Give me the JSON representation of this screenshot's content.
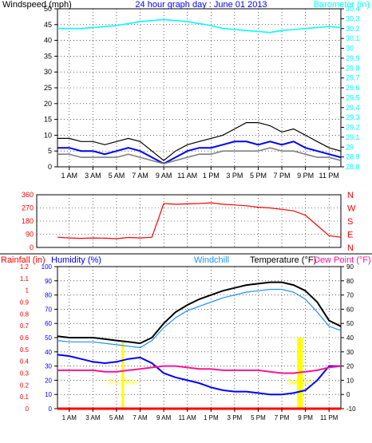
{
  "chart_data": [
    {
      "type": "line",
      "title": "24 hour graph day : June 01 2013",
      "ylabel_left": "Windspeed (mph)",
      "ylabel_right": "Barometer (in)",
      "ylim_left": [
        0,
        50
      ],
      "ylim_right": [
        28.8,
        30.4
      ],
      "yticks_left": [
        "0",
        "5",
        "10",
        "15",
        "20",
        "25",
        "30",
        "35",
        "40",
        "45",
        "50"
      ],
      "yticks_right": [
        "28.8",
        "28.9",
        "29",
        "29.1",
        "29.2",
        "29.3",
        "29.4",
        "29.5",
        "29.6",
        "29.7",
        "29.8",
        "29.9",
        "30",
        "30.1",
        "30.2",
        "30.3",
        "30.4"
      ],
      "xticks": [
        "1 AM",
        "3 AM",
        "5 AM",
        "7 AM",
        "9 AM",
        "11 AM",
        "1 PM",
        "3 PM",
        "5 PM",
        "7 PM",
        "9 PM",
        "11 PM"
      ],
      "x_hours": [
        0,
        1,
        2,
        3,
        4,
        5,
        6,
        7,
        8,
        9,
        10,
        11,
        12,
        13,
        14,
        15,
        16,
        17,
        18,
        19,
        20,
        21,
        22,
        23,
        24
      ],
      "series": [
        {
          "key": "gust",
          "color": "#000000",
          "values": [
            9,
            9,
            8,
            8,
            7,
            8,
            9,
            8,
            5,
            2,
            5,
            7,
            8,
            9,
            10,
            12,
            14,
            14,
            13,
            11,
            12,
            10,
            8,
            6,
            5
          ]
        },
        {
          "key": "speed",
          "color": "#0000ff",
          "values": [
            6,
            6,
            5,
            5,
            4,
            5,
            6,
            5,
            3,
            1,
            3,
            5,
            6,
            6,
            7,
            8,
            8,
            7,
            8,
            7,
            8,
            6,
            5,
            4,
            3
          ]
        },
        {
          "key": "avg",
          "color": "#808080",
          "values": [
            4,
            4,
            3,
            3,
            3,
            3,
            4,
            3,
            2,
            1,
            2,
            3,
            4,
            4,
            5,
            5,
            5,
            5,
            6,
            5,
            5,
            4,
            3,
            3,
            2
          ]
        },
        {
          "key": "barometer",
          "color": "#00ffff",
          "axis": "right",
          "values": [
            30.2,
            30.2,
            30.2,
            30.21,
            30.22,
            30.23,
            30.25,
            30.27,
            30.28,
            30.29,
            30.28,
            30.27,
            30.25,
            30.23,
            30.2,
            30.19,
            30.18,
            30.17,
            30.16,
            30.18,
            30.19,
            30.2,
            30.21,
            30.22,
            30.21
          ]
        }
      ]
    },
    {
      "type": "line",
      "ylim": [
        0,
        360
      ],
      "yticks": [
        "0",
        "90",
        "180",
        "270",
        "360"
      ],
      "compass": [
        "N",
        "W",
        "S",
        "E",
        "N"
      ],
      "xticks": [
        "1 AM",
        "3 AM",
        "5 AM",
        "7 AM",
        "9 AM",
        "11 AM",
        "1 PM",
        "3 PM",
        "5 PM",
        "7 PM",
        "9 PM",
        "11 PM"
      ],
      "series": [
        {
          "key": "direction",
          "color": "#ff0000",
          "values": [
            70,
            65,
            62,
            65,
            63,
            60,
            68,
            65,
            70,
            300,
            295,
            298,
            300,
            305,
            295,
            290,
            285,
            275,
            270,
            260,
            250,
            220,
            150,
            80,
            70
          ]
        }
      ]
    },
    {
      "type": "line",
      "legend": [
        "Rainfall (in)",
        "Humidity (%)",
        "Windchill",
        "Temperature (°F)",
        "Dew Point (°F)"
      ],
      "ylim_rain": [
        0,
        1.2
      ],
      "ylim_humidity": [
        0,
        100
      ],
      "ylim_temp": [
        -10,
        90
      ],
      "yticks_rain": [
        "0",
        "0.1",
        "0.2",
        "0.3",
        "0.4",
        "0.5",
        "0.6",
        "0.7",
        "0.8",
        "0.9",
        "1",
        "1.1",
        "1.2"
      ],
      "yticks_humidity": [
        "0",
        "10",
        "20",
        "30",
        "40",
        "50",
        "60",
        "70",
        "80",
        "90",
        "100"
      ],
      "yticks_temp": [
        "-10",
        "0",
        "10",
        "20",
        "30",
        "40",
        "50",
        "60",
        "70",
        "80",
        "90"
      ],
      "xticks": [
        "1 AM",
        "3 AM",
        "5 AM",
        "7 AM",
        "9 AM",
        "11 AM",
        "1 PM",
        "3 PM",
        "5 PM",
        "7 PM",
        "9 PM",
        "11 PM"
      ],
      "annotations": [
        {
          "text": "Sun Rise",
          "hour": 5.5
        },
        {
          "text": "Sun Set",
          "hour": 20.5
        }
      ],
      "series": [
        {
          "key": "temperature",
          "color": "#000000",
          "axis": "temp",
          "values": [
            41,
            40,
            40,
            40,
            39,
            38,
            37,
            36,
            40,
            50,
            58,
            63,
            67,
            70,
            73,
            75,
            77,
            78,
            79,
            79,
            77,
            73,
            65,
            52,
            48
          ]
        },
        {
          "key": "windchill",
          "color": "#1e90ff",
          "axis": "temp",
          "values": [
            38,
            37,
            37,
            37,
            36,
            35,
            34,
            33,
            38,
            47,
            54,
            59,
            62,
            65,
            68,
            70,
            72,
            73,
            74,
            74,
            72,
            67,
            58,
            48,
            45
          ]
        },
        {
          "key": "humidity",
          "color": "#0000ff",
          "axis": "humidity",
          "values": [
            38,
            37,
            35,
            33,
            32,
            33,
            35,
            36,
            32,
            25,
            22,
            20,
            18,
            15,
            13,
            12,
            12,
            11,
            10,
            10,
            11,
            13,
            20,
            30,
            30
          ]
        },
        {
          "key": "dewpoint",
          "color": "#ff1493",
          "axis": "temp",
          "values": [
            17,
            17,
            17,
            17,
            16,
            16,
            17,
            18,
            19,
            20,
            20,
            19,
            18,
            18,
            17,
            17,
            17,
            17,
            16,
            15,
            15,
            16,
            17,
            19,
            20
          ]
        },
        {
          "key": "rainfall",
          "color": "#ff0000",
          "axis": "rain",
          "values": [
            0,
            0,
            0,
            0,
            0,
            0,
            0,
            0,
            0,
            0,
            0,
            0,
            0,
            0,
            0,
            0,
            0,
            0,
            0,
            0,
            0,
            0,
            0,
            0,
            0
          ]
        }
      ]
    }
  ]
}
